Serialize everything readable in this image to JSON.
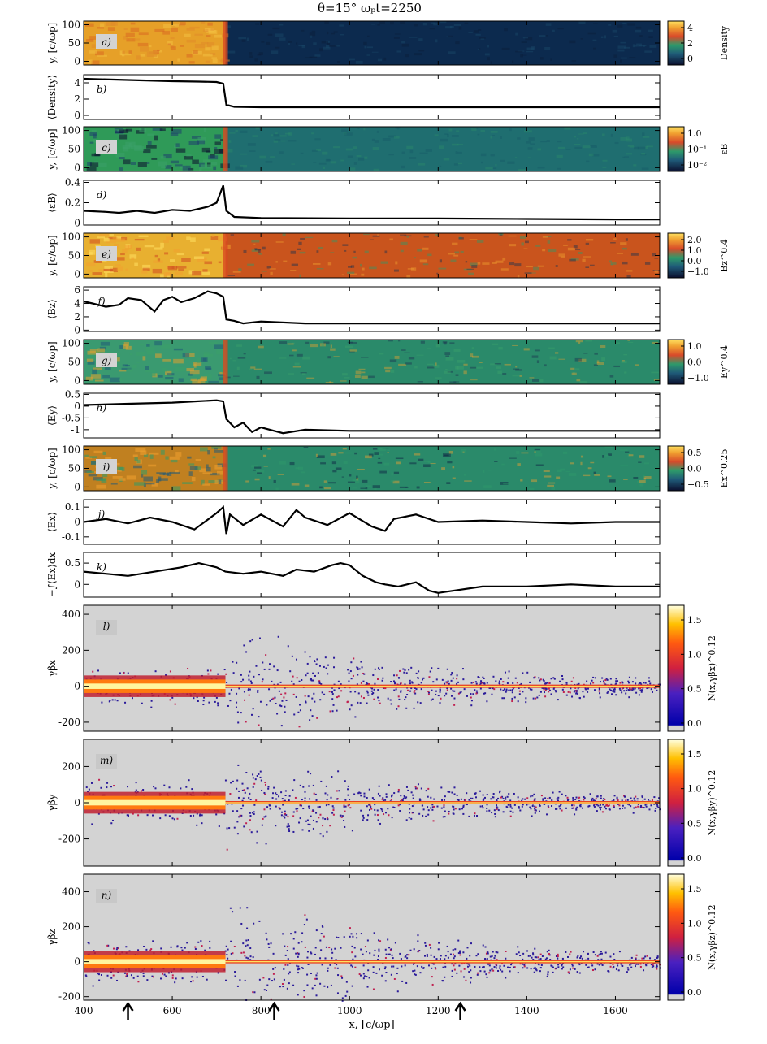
{
  "title": "θ=15°     ωₚt=2250",
  "colors": {
    "upstream_map": "#0a3a5a",
    "downstream_map": "#e9a23a",
    "wave_map": "#c8561f",
    "green_map": "#2f8f6e",
    "phase_bg": "#d3d3d3",
    "line": "#000000"
  },
  "chart_data": {
    "type": "multi-panel",
    "title": "θ=15°  ωpt=2250",
    "xlabel": "x, [c/ωp]",
    "xlim": [
      400,
      1700
    ],
    "xticks": [
      400,
      600,
      800,
      1000,
      1200,
      1400,
      1600
    ],
    "shock_x": 720,
    "arrows_x": [
      500,
      830,
      1250
    ],
    "panels": [
      {
        "id": "a",
        "label": "a)",
        "type": "map",
        "ylabel": "y, [c/ωp]",
        "ylim": [
          -10,
          110
        ],
        "yticks": [
          0,
          50,
          100
        ],
        "cbar_label": "Density",
        "cbar_ticks": [
          "0",
          "2",
          "4"
        ],
        "upstream": "low",
        "downstream": "high"
      },
      {
        "id": "b",
        "label": "b)",
        "type": "line",
        "ylabel": "⟨Density⟩",
        "ylim": [
          -0.5,
          5
        ],
        "yticks": [
          0,
          2,
          4
        ],
        "x": [
          400,
          500,
          600,
          660,
          700,
          715,
          722,
          740,
          800,
          1000,
          1200,
          1400,
          1700
        ],
        "y": [
          4.5,
          4.35,
          4.2,
          4.15,
          4.1,
          3.9,
          1.3,
          1.05,
          1.0,
          1.0,
          1.0,
          1.0,
          1.0
        ]
      },
      {
        "id": "c",
        "label": "c)",
        "type": "map",
        "ylabel": "y, [c/ωp]",
        "ylim": [
          -10,
          110
        ],
        "yticks": [
          0,
          50,
          100
        ],
        "cbar_label": "εB",
        "cbar_ticks": [
          "1.0",
          "10⁻¹",
          "10⁻²"
        ]
      },
      {
        "id": "d",
        "label": "d)",
        "type": "line",
        "ylabel": "⟨εB⟩",
        "ylim": [
          -0.02,
          0.42
        ],
        "yticks": [
          0.0,
          0.2,
          0.4
        ],
        "x": [
          400,
          450,
          480,
          520,
          560,
          600,
          640,
          680,
          700,
          715,
          722,
          740,
          800,
          1000,
          1200,
          1400,
          1600,
          1700
        ],
        "y": [
          0.12,
          0.11,
          0.1,
          0.12,
          0.1,
          0.13,
          0.12,
          0.16,
          0.2,
          0.37,
          0.12,
          0.06,
          0.05,
          0.045,
          0.045,
          0.04,
          0.035,
          0.035
        ]
      },
      {
        "id": "e",
        "label": "e)",
        "type": "map",
        "ylabel": "y, [c/ωp]",
        "ylim": [
          -10,
          110
        ],
        "yticks": [
          0,
          50,
          100
        ],
        "cbar_label": "Bz^0.4",
        "cbar_ticks": [
          "2.0",
          "1.0",
          "0.0",
          "−1.0"
        ]
      },
      {
        "id": "f",
        "label": "f)",
        "type": "line",
        "ylabel": "⟨Bz⟩",
        "ylim": [
          -0.2,
          6.5
        ],
        "yticks": [
          0,
          2,
          4,
          6
        ],
        "x": [
          400,
          420,
          450,
          480,
          500,
          530,
          560,
          580,
          600,
          620,
          650,
          680,
          700,
          715,
          722,
          740,
          760,
          800,
          900,
          1000,
          1200,
          1700
        ],
        "y": [
          4.3,
          4.0,
          3.5,
          3.8,
          4.8,
          4.5,
          2.8,
          4.5,
          5.0,
          4.2,
          4.8,
          5.8,
          5.5,
          5.0,
          1.6,
          1.4,
          1.0,
          1.3,
          1.0,
          1.0,
          1.0,
          1.0
        ]
      },
      {
        "id": "g",
        "label": "g)",
        "type": "map",
        "ylabel": "y, [c/ωp]",
        "ylim": [
          -10,
          110
        ],
        "yticks": [
          0,
          50,
          100
        ],
        "cbar_label": "Ey^0.4",
        "cbar_ticks": [
          "1.0",
          "0.0",
          "−1.0"
        ]
      },
      {
        "id": "h",
        "label": "h)",
        "type": "line",
        "ylabel": "⟨Ey⟩",
        "ylim": [
          -1.35,
          0.55
        ],
        "yticks": [
          0.5,
          0.0,
          -0.5,
          -1.0
        ],
        "x": [
          400,
          500,
          600,
          650,
          700,
          715,
          722,
          740,
          760,
          780,
          800,
          850,
          900,
          1000,
          1200,
          1400,
          1600,
          1700
        ],
        "y": [
          0.05,
          0.1,
          0.15,
          0.2,
          0.25,
          0.2,
          -0.55,
          -0.9,
          -0.7,
          -1.1,
          -0.9,
          -1.15,
          -1.0,
          -1.05,
          -1.05,
          -1.05,
          -1.05,
          -1.05
        ]
      },
      {
        "id": "i",
        "label": "i)",
        "type": "map",
        "ylabel": "y, [c/ωp]",
        "ylim": [
          -10,
          110
        ],
        "yticks": [
          0,
          50,
          100
        ],
        "cbar_label": "Ex^0.25",
        "cbar_ticks": [
          "0.5",
          "0.0",
          "−0.5"
        ]
      },
      {
        "id": "j",
        "label": "j)",
        "type": "line",
        "ylabel": "⟨Ex⟩",
        "ylim": [
          -0.15,
          0.15
        ],
        "yticks": [
          0.1,
          0.0,
          -0.1
        ],
        "x": [
          400,
          450,
          500,
          550,
          600,
          650,
          700,
          715,
          722,
          730,
          760,
          800,
          850,
          880,
          900,
          950,
          1000,
          1050,
          1080,
          1100,
          1150,
          1200,
          1300,
          1400,
          1500,
          1600,
          1700
        ],
        "y": [
          0.0,
          0.02,
          -0.01,
          0.03,
          0.0,
          -0.05,
          0.06,
          0.1,
          -0.08,
          0.05,
          -0.02,
          0.05,
          -0.03,
          0.08,
          0.03,
          -0.02,
          0.06,
          -0.03,
          -0.06,
          0.02,
          0.05,
          0.0,
          0.01,
          0.0,
          -0.01,
          0.0,
          0.0
        ]
      },
      {
        "id": "k",
        "label": "k)",
        "type": "line",
        "ylabel": "−∫⟨Ex⟩dx",
        "ylim": [
          -0.3,
          0.75
        ],
        "yticks": [
          0.5,
          0.0
        ],
        "x": [
          400,
          450,
          500,
          560,
          620,
          660,
          700,
          720,
          760,
          800,
          850,
          880,
          920,
          960,
          980,
          1000,
          1030,
          1060,
          1080,
          1110,
          1150,
          1180,
          1200,
          1300,
          1400,
          1500,
          1600,
          1700
        ],
        "y": [
          0.3,
          0.25,
          0.2,
          0.3,
          0.4,
          0.5,
          0.4,
          0.3,
          0.25,
          0.3,
          0.2,
          0.35,
          0.3,
          0.45,
          0.5,
          0.45,
          0.2,
          0.05,
          0.0,
          -0.05,
          0.05,
          -0.15,
          -0.2,
          -0.05,
          -0.05,
          0.0,
          -0.05,
          -0.05
        ]
      },
      {
        "id": "l",
        "label": "l)",
        "type": "phase",
        "ylabel": "γβx",
        "ylim": [
          -250,
          450
        ],
        "yticks": [
          -200,
          0,
          200,
          400
        ],
        "cbar_label": "N(x,γβx)^0.12",
        "cbar_ticks": [
          "1.5",
          "1.0",
          "0.5",
          "0.0"
        ],
        "spread": [
          120,
          350
        ]
      },
      {
        "id": "m",
        "label": "m)",
        "type": "phase",
        "ylabel": "γβy",
        "ylim": [
          -350,
          350
        ],
        "yticks": [
          -200,
          0,
          200
        ],
        "cbar_label": "N(x,γβy)^0.12",
        "cbar_ticks": [
          "1.5",
          "1.0",
          "0.5",
          "0.0"
        ],
        "spread": [
          140,
          300
        ]
      },
      {
        "id": "n",
        "label": "n)",
        "type": "phase",
        "ylabel": "γβz",
        "ylim": [
          -220,
          500
        ],
        "yticks": [
          -200,
          0,
          200,
          400
        ],
        "cbar_label": "N(x,γβz)^0.12",
        "cbar_ticks": [
          "1.5",
          "1.0",
          "0.5",
          "0.0"
        ],
        "spread": [
          140,
          400
        ]
      }
    ]
  }
}
